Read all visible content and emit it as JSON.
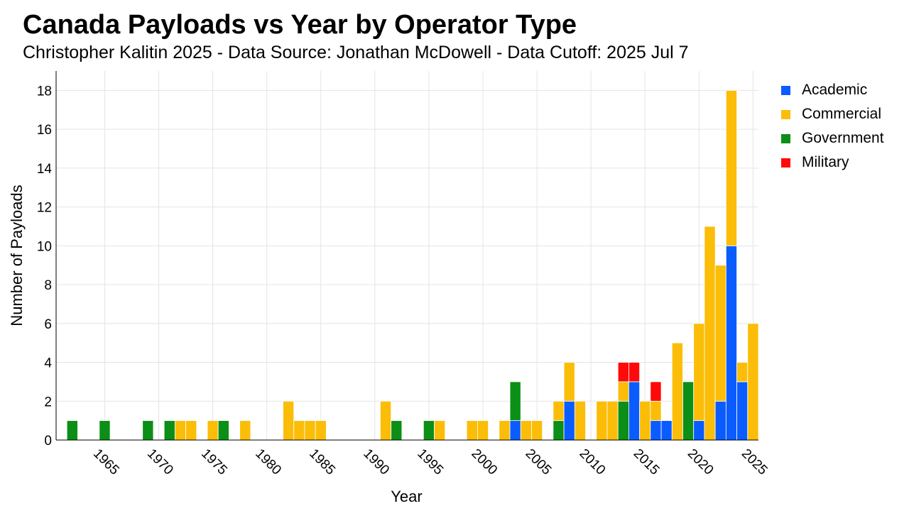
{
  "title": "Canada Payloads vs Year by Operator Type",
  "subtitle": "Christopher Kalitin 2025 - Data Source: Jonathan McDowell - Data Cutoff: 2025 Jul 7",
  "legend": [
    {
      "label": "Academic",
      "color": "#0a5cff"
    },
    {
      "label": "Commercial",
      "color": "#fbbd08"
    },
    {
      "label": "Government",
      "color": "#0b8f16"
    },
    {
      "label": "Military",
      "color": "#ff0a0a"
    }
  ],
  "chart_data": {
    "type": "bar",
    "stacked": true,
    "xlabel": "Year",
    "ylabel": "Number of Payloads",
    "xlim": [
      1960.5,
      2025.5
    ],
    "ylim": [
      0,
      19
    ],
    "x_ticks": [
      1965,
      1970,
      1975,
      1980,
      1985,
      1990,
      1995,
      2000,
      2005,
      2010,
      2015,
      2020,
      2025
    ],
    "y_ticks": [
      0,
      2,
      4,
      6,
      8,
      10,
      12,
      14,
      16,
      18
    ],
    "grid": true,
    "legend_position": "right",
    "categories": [
      1962,
      1965,
      1969,
      1971,
      1972,
      1973,
      1975,
      1976,
      1978,
      1982,
      1983,
      1984,
      1985,
      1991,
      1992,
      1995,
      1996,
      1999,
      2000,
      2002,
      2003,
      2004,
      2005,
      2007,
      2008,
      2009,
      2011,
      2012,
      2013,
      2014,
      2015,
      2016,
      2017,
      2018,
      2019,
      2020,
      2021,
      2022,
      2023,
      2024,
      2025
    ],
    "series": [
      {
        "name": "Academic",
        "color": "#0a5cff",
        "values": [
          0,
          0,
          0,
          0,
          0,
          0,
          0,
          0,
          0,
          0,
          0,
          0,
          0,
          0,
          0,
          0,
          0,
          0,
          0,
          0,
          1,
          0,
          0,
          0,
          2,
          0,
          0,
          0,
          0,
          3,
          0,
          1,
          1,
          0,
          0,
          1,
          0,
          2,
          10,
          3,
          0
        ]
      },
      {
        "name": "Government",
        "color": "#0b8f16",
        "values": [
          1,
          1,
          1,
          1,
          0,
          0,
          0,
          1,
          0,
          0,
          0,
          0,
          0,
          0,
          1,
          1,
          0,
          0,
          0,
          0,
          2,
          0,
          0,
          1,
          0,
          0,
          0,
          0,
          2,
          0,
          0,
          0,
          0,
          0,
          3,
          0,
          0,
          0,
          0,
          0,
          0
        ]
      },
      {
        "name": "Commercial",
        "color": "#fbbd08",
        "values": [
          0,
          0,
          0,
          0,
          1,
          1,
          1,
          0,
          1,
          2,
          1,
          1,
          1,
          2,
          0,
          0,
          1,
          1,
          1,
          1,
          0,
          1,
          1,
          1,
          2,
          2,
          2,
          2,
          1,
          0,
          2,
          1,
          0,
          5,
          0,
          5,
          11,
          7,
          8,
          1,
          6
        ]
      },
      {
        "name": "Military",
        "color": "#ff0a0a",
        "values": [
          0,
          0,
          0,
          0,
          0,
          0,
          0,
          0,
          0,
          0,
          0,
          0,
          0,
          0,
          0,
          0,
          0,
          0,
          0,
          0,
          0,
          0,
          0,
          0,
          0,
          0,
          0,
          0,
          1,
          1,
          0,
          1,
          0,
          0,
          0,
          0,
          0,
          0,
          0,
          0,
          0
        ]
      }
    ]
  }
}
